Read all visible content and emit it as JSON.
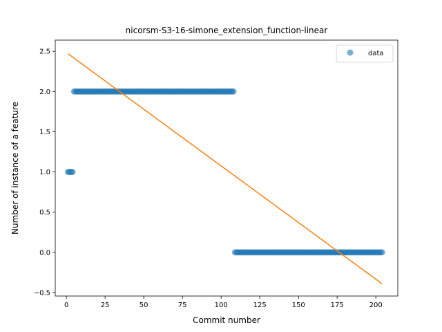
{
  "chart_data": {
    "type": "scatter",
    "title": "nicorsm-S3-16-simone_extension_function-linear",
    "xlabel": "Commit number",
    "ylabel": "Number of instance of a feature",
    "xlim": [
      -7.2,
      214.2
    ],
    "ylim": [
      -0.543,
      2.639
    ],
    "xticks": [
      0,
      25,
      50,
      75,
      100,
      125,
      150,
      175,
      200
    ],
    "xtick_labels": [
      "0",
      "25",
      "50",
      "75",
      "100",
      "125",
      "150",
      "175",
      "200"
    ],
    "yticks": [
      -0.5,
      0.0,
      0.5,
      1.0,
      1.5,
      2.0,
      2.5
    ],
    "ytick_labels": [
      "−0.5",
      "0.0",
      "0.5",
      "1.0",
      "1.5",
      "2.0",
      "2.5"
    ],
    "grid": false,
    "legend_position": "top-right",
    "series": [
      {
        "name": "data",
        "kind": "scatter",
        "color": "#1f77b4",
        "runs": [
          {
            "x_start": 1,
            "x_end": 4,
            "y": 1
          },
          {
            "x_start": 5,
            "x_end": 108,
            "y": 2
          },
          {
            "x_start": 109,
            "x_end": 204,
            "y": 0
          }
        ]
      },
      {
        "kind": "line",
        "color": "#ff7f0e",
        "x": [
          1,
          204
        ],
        "y": [
          2.47,
          -0.39
        ]
      }
    ]
  }
}
